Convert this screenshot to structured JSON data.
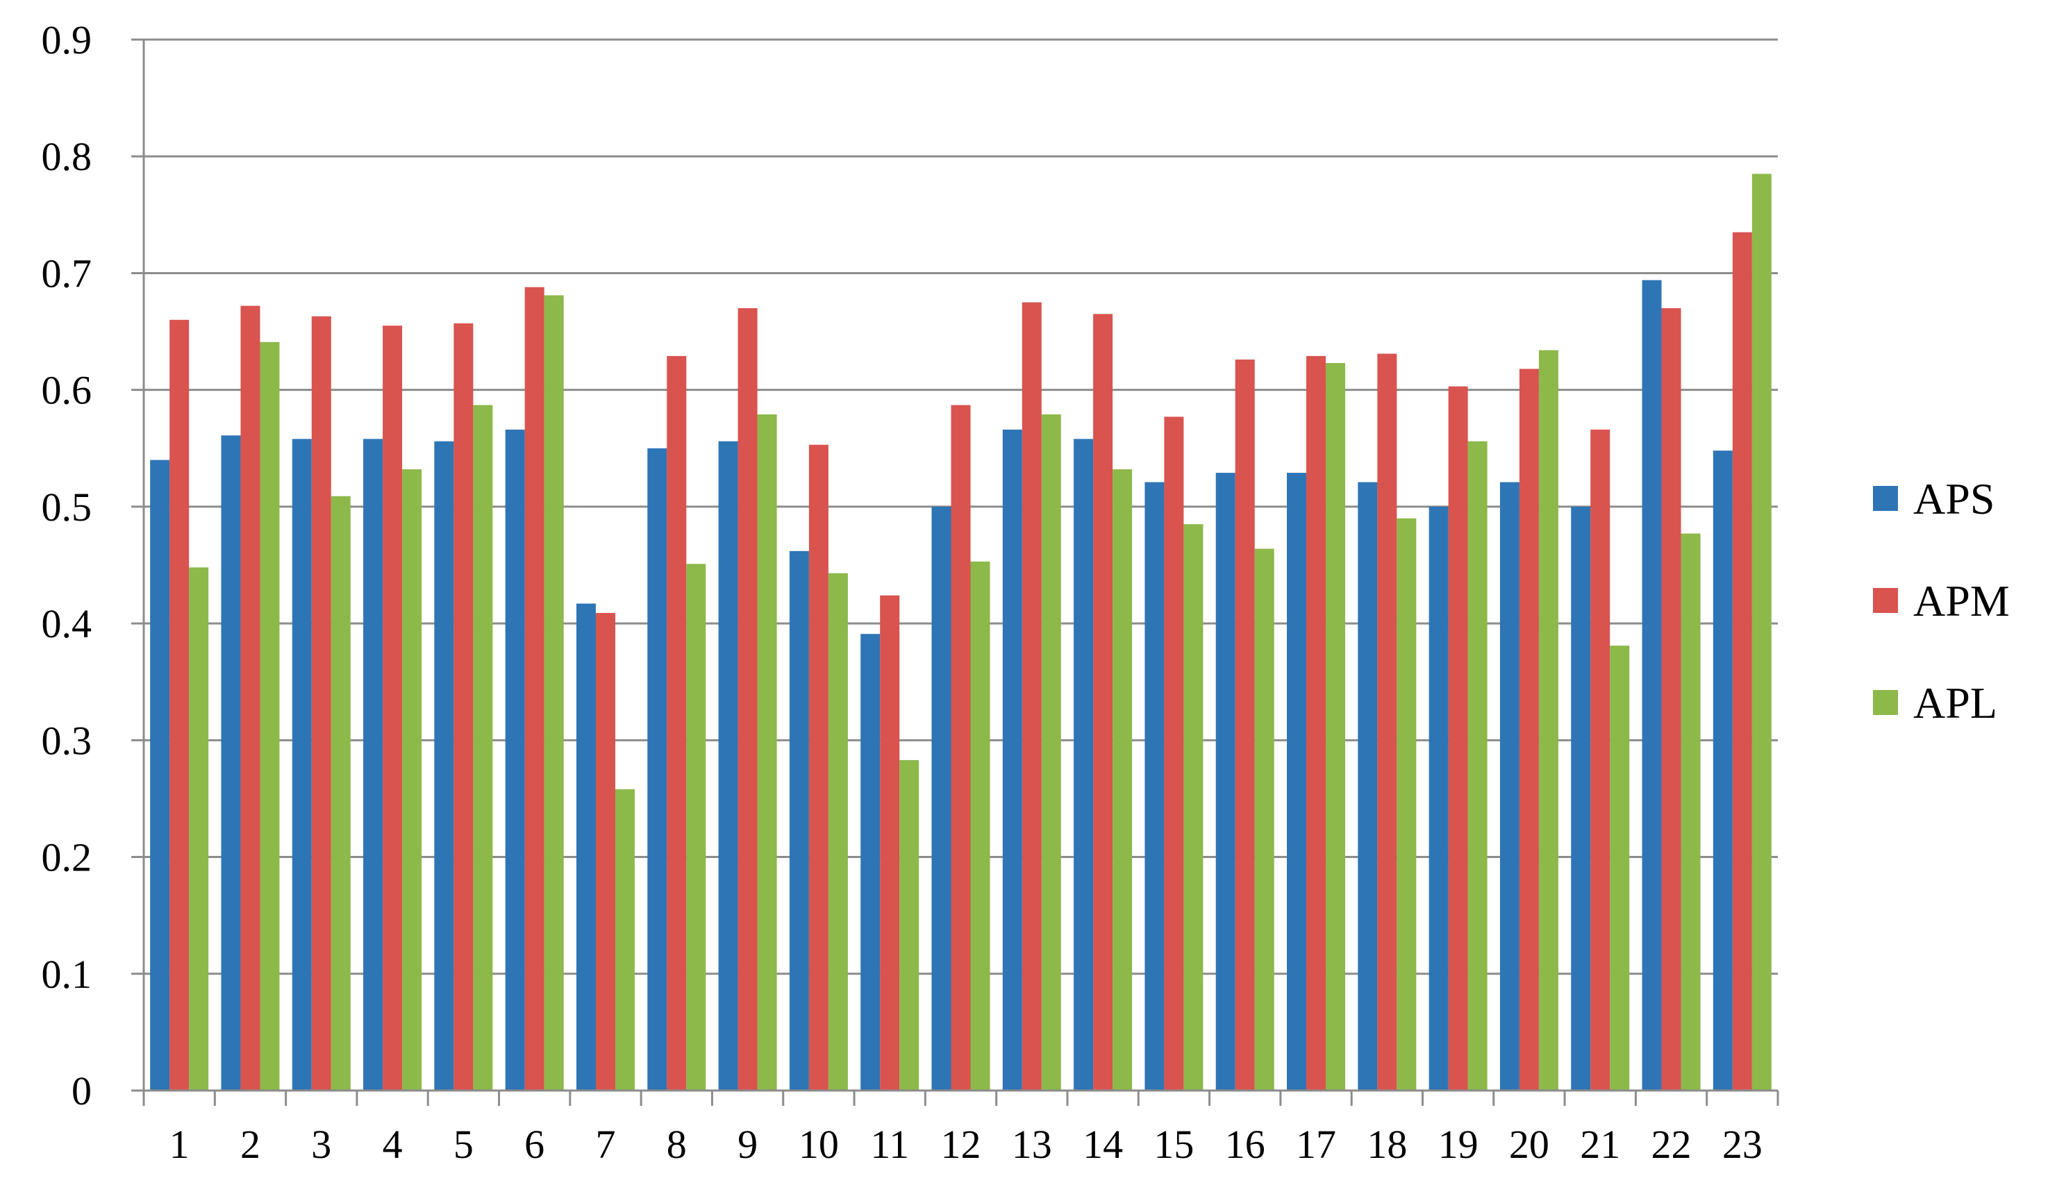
{
  "chart_data": {
    "type": "bar",
    "title": "",
    "xlabel": "",
    "ylabel": "",
    "ylim": [
      0,
      0.9
    ],
    "yticks": [
      "0",
      "0.1",
      "0.2",
      "0.3",
      "0.4",
      "0.5",
      "0.6",
      "0.7",
      "0.8",
      "0.9"
    ],
    "grid": true,
    "legend_position": "right",
    "categories": [
      "1",
      "2",
      "3",
      "4",
      "5",
      "6",
      "7",
      "8",
      "9",
      "10",
      "11",
      "12",
      "13",
      "14",
      "15",
      "16",
      "17",
      "18",
      "19",
      "20",
      "21",
      "22",
      "23"
    ],
    "series": [
      {
        "name": "APS",
        "color": "#2E75B6",
        "values": [
          0.54,
          0.561,
          0.558,
          0.558,
          0.556,
          0.566,
          0.417,
          0.55,
          0.556,
          0.462,
          0.391,
          0.5,
          0.566,
          0.558,
          0.521,
          0.529,
          0.529,
          0.521,
          0.5,
          0.521,
          0.5,
          0.694,
          0.548
        ]
      },
      {
        "name": "APM",
        "color": "#D9534F",
        "values": [
          0.66,
          0.672,
          0.663,
          0.655,
          0.657,
          0.688,
          0.409,
          0.629,
          0.67,
          0.553,
          0.424,
          0.587,
          0.675,
          0.665,
          0.577,
          0.626,
          0.629,
          0.631,
          0.603,
          0.618,
          0.566,
          0.67,
          0.735
        ]
      },
      {
        "name": "APL",
        "color": "#8DB84A",
        "values": [
          0.448,
          0.641,
          0.509,
          0.532,
          0.587,
          0.681,
          0.258,
          0.451,
          0.579,
          0.443,
          0.283,
          0.453,
          0.579,
          0.532,
          0.485,
          0.464,
          0.623,
          0.49,
          0.556,
          0.634,
          0.381,
          0.477,
          0.785
        ]
      }
    ]
  }
}
